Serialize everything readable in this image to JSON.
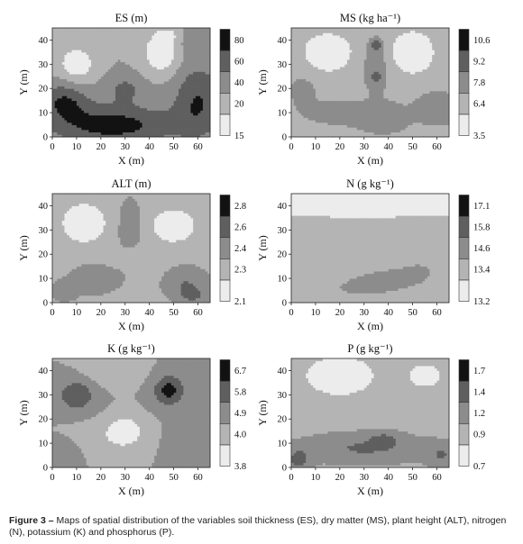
{
  "caption": {
    "label": "Figure 3 –",
    "text": "Maps of spatial distribution of the variables soil thickness (ES), dry matter (MS), plant height (ALT), nitrogen (N), potassium (K) and phosphorus (P)."
  },
  "colors": [
    "#ececec",
    "#b4b4b4",
    "#8c8c8c",
    "#5f5f5f",
    "#121212"
  ],
  "chart_data": [
    {
      "type": "heatmap",
      "id": "ES",
      "title": "ES (m)",
      "xlabel": "X (m)",
      "ylabel": "Y (m)",
      "xlim": [
        0,
        65
      ],
      "ylim": [
        0,
        45
      ],
      "xticks": [
        "0",
        "10",
        "20",
        "30",
        "40",
        "50",
        "60"
      ],
      "yticks": [
        "0",
        "10",
        "20",
        "30",
        "40"
      ],
      "legend_labels": [
        "15",
        "20",
        "40",
        "60",
        "80"
      ],
      "field": {
        "base": 2,
        "blobs": [
          [
            10,
            30,
            8,
            8,
            -1.7
          ],
          [
            45,
            35,
            8,
            9,
            -1.9
          ],
          [
            48,
            42,
            5,
            3,
            -1.0
          ],
          [
            25,
            5,
            25,
            8,
            2.5
          ],
          [
            60,
            15,
            10,
            15,
            2.0
          ],
          [
            5,
            15,
            10,
            8,
            2.0
          ],
          [
            30,
            20,
            8,
            6,
            1.2
          ],
          [
            57,
            40,
            10,
            6,
            0.6
          ]
        ]
      }
    },
    {
      "type": "heatmap",
      "id": "MS",
      "title": "MS (kg ha⁻¹)",
      "xlabel": "X (m)",
      "ylabel": "Y (m)",
      "xlim": [
        0,
        65
      ],
      "ylim": [
        0,
        45
      ],
      "xticks": [
        "0",
        "10",
        "20",
        "30",
        "40",
        "50",
        "60"
      ],
      "yticks": [
        "0",
        "10",
        "20",
        "30",
        "40"
      ],
      "legend_labels": [
        "3.5",
        "6.4",
        "7.8",
        "9.2",
        "10.6"
      ],
      "field": {
        "base": 1.8,
        "blobs": [
          [
            15,
            35,
            10,
            8,
            -2.0
          ],
          [
            50,
            35,
            9,
            9,
            -2.0
          ],
          [
            35,
            30,
            5,
            10,
            0.9
          ],
          [
            35,
            38,
            2,
            2,
            2.0
          ],
          [
            35,
            25,
            2,
            2,
            1.5
          ],
          [
            20,
            10,
            14,
            5,
            0.5
          ],
          [
            38,
            8,
            10,
            6,
            0.7
          ],
          [
            60,
            12,
            8,
            6,
            0.9
          ],
          [
            5,
            20,
            6,
            8,
            0.4
          ]
        ]
      }
    },
    {
      "type": "heatmap",
      "id": "ALT",
      "title": "ALT (m)",
      "xlabel": "X (m)",
      "ylabel": "Y (m)",
      "xlim": [
        0,
        65
      ],
      "ylim": [
        0,
        45
      ],
      "xticks": [
        "0",
        "10",
        "20",
        "30",
        "40",
        "50",
        "60"
      ],
      "yticks": [
        "0",
        "10",
        "20",
        "30",
        "40"
      ],
      "legend_labels": [
        "2.1",
        "2.3",
        "2.4",
        "2.6",
        "2.8"
      ],
      "field": {
        "base": 1.8,
        "blobs": [
          [
            13,
            33,
            9,
            8,
            -2.0
          ],
          [
            50,
            32,
            9,
            7,
            -1.9
          ],
          [
            32,
            30,
            5,
            12,
            0.8
          ],
          [
            18,
            10,
            10,
            6,
            0.7
          ],
          [
            55,
            8,
            8,
            6,
            1.2
          ],
          [
            5,
            5,
            5,
            4,
            0.8
          ],
          [
            35,
            20,
            10,
            5,
            -0.5
          ],
          [
            58,
            3,
            6,
            3,
            1.2
          ]
        ]
      }
    },
    {
      "type": "heatmap",
      "id": "N",
      "title": "N (g kg⁻¹)",
      "xlabel": "X (m)",
      "ylabel": "Y (m)",
      "xlim": [
        0,
        65
      ],
      "ylim": [
        0,
        45
      ],
      "xticks": [
        "0",
        "10",
        "20",
        "30",
        "40",
        "50",
        "60"
      ],
      "yticks": [
        "0",
        "10",
        "20",
        "30",
        "40"
      ],
      "legend_labels": [
        "13.2",
        "13.4",
        "14.6",
        "15.8",
        "17.1"
      ],
      "field": {
        "base": 1.05,
        "blobs": [
          [
            40,
            10,
            25,
            10,
            1.0
          ],
          [
            55,
            15,
            10,
            8,
            0.4
          ],
          [
            20,
            5,
            20,
            6,
            0.5
          ],
          [
            30,
            42,
            40,
            4,
            -0.8
          ]
        ]
      }
    },
    {
      "type": "heatmap",
      "id": "K",
      "title": "K (g kg⁻¹)",
      "xlabel": "X (m)",
      "ylabel": "Y (m)",
      "xlim": [
        0,
        65
      ],
      "ylim": [
        0,
        45
      ],
      "xticks": [
        "0",
        "10",
        "20",
        "30",
        "40",
        "50",
        "60"
      ],
      "yticks": [
        "0",
        "10",
        "20",
        "30",
        "40"
      ],
      "legend_labels": [
        "3.8",
        "4.0",
        "4.9",
        "5.8",
        "6.7"
      ],
      "field": {
        "base": 2.0,
        "blobs": [
          [
            10,
            30,
            7,
            6,
            2.0
          ],
          [
            48,
            32,
            6,
            6,
            2.5
          ],
          [
            30,
            15,
            7,
            6,
            -2.0
          ],
          [
            25,
            40,
            10,
            5,
            -1.0
          ],
          [
            60,
            10,
            8,
            8,
            1.0
          ],
          [
            5,
            5,
            5,
            5,
            1.0
          ],
          [
            20,
            12,
            10,
            6,
            -0.5
          ]
        ]
      }
    },
    {
      "type": "heatmap",
      "id": "P",
      "title": "P (g kg⁻¹)",
      "xlabel": "X (m)",
      "ylabel": "Y (m)",
      "xlim": [
        0,
        65
      ],
      "ylim": [
        0,
        45
      ],
      "xticks": [
        "0",
        "10",
        "20",
        "30",
        "40",
        "50",
        "60"
      ],
      "yticks": [
        "0",
        "10",
        "20",
        "30",
        "40"
      ],
      "legend_labels": [
        "0.7",
        "0.9",
        "1.2",
        "1.4",
        "1.7"
      ],
      "field": {
        "base": 1.7,
        "blobs": [
          [
            20,
            38,
            14,
            8,
            -1.8
          ],
          [
            55,
            38,
            8,
            6,
            -1.2
          ],
          [
            30,
            8,
            25,
            6,
            1.4
          ],
          [
            38,
            12,
            6,
            3,
            1.0
          ],
          [
            62,
            5,
            6,
            5,
            1.2
          ],
          [
            3,
            3,
            5,
            5,
            1.5
          ]
        ]
      }
    }
  ]
}
